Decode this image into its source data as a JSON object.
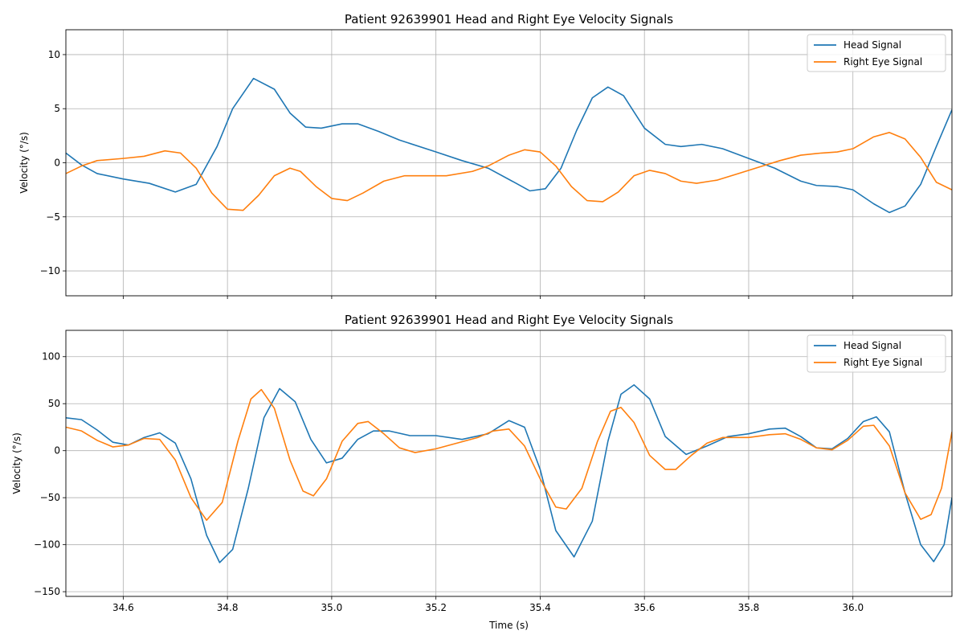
{
  "chart_data": [
    {
      "type": "line",
      "title": "Patient 92639901 Head and Right Eye Velocity Signals",
      "xlabel": "",
      "ylabel": "Velocity (°/s)",
      "xlim": [
        34.49,
        36.19
      ],
      "ylim": [
        -12.3,
        12.3
      ],
      "xticks": [
        34.6,
        34.8,
        35.0,
        35.2,
        35.4,
        35.6,
        35.8,
        36.0
      ],
      "xticklabels_visible": false,
      "yticks": [
        -10,
        -5,
        0,
        5,
        10
      ],
      "grid": true,
      "legend_position": "top-right",
      "series": [
        {
          "name": "Head Signal",
          "color": "#1f77b4",
          "points": [
            [
              34.49,
              0.9
            ],
            [
              34.52,
              -0.2
            ],
            [
              34.55,
              -1.0
            ],
            [
              34.6,
              -1.5
            ],
            [
              34.65,
              -1.9
            ],
            [
              34.7,
              -2.7
            ],
            [
              34.74,
              -2.0
            ],
            [
              34.78,
              1.5
            ],
            [
              34.81,
              5.0
            ],
            [
              34.85,
              7.8
            ],
            [
              34.89,
              6.8
            ],
            [
              34.92,
              4.6
            ],
            [
              34.95,
              3.3
            ],
            [
              34.98,
              3.2
            ],
            [
              35.02,
              3.6
            ],
            [
              35.05,
              3.6
            ],
            [
              35.09,
              2.9
            ],
            [
              35.13,
              2.1
            ],
            [
              35.2,
              1.0
            ],
            [
              35.25,
              0.2
            ],
            [
              35.3,
              -0.5
            ],
            [
              35.35,
              -1.8
            ],
            [
              35.38,
              -2.6
            ],
            [
              35.41,
              -2.4
            ],
            [
              35.44,
              -0.5
            ],
            [
              35.47,
              3.0
            ],
            [
              35.5,
              6.0
            ],
            [
              35.53,
              7.0
            ],
            [
              35.56,
              6.2
            ],
            [
              35.6,
              3.2
            ],
            [
              35.64,
              1.7
            ],
            [
              35.67,
              1.5
            ],
            [
              35.71,
              1.7
            ],
            [
              35.75,
              1.3
            ],
            [
              35.8,
              0.4
            ],
            [
              35.85,
              -0.5
            ],
            [
              35.9,
              -1.7
            ],
            [
              35.93,
              -2.1
            ],
            [
              35.97,
              -2.2
            ],
            [
              36.0,
              -2.5
            ],
            [
              36.04,
              -3.8
            ],
            [
              36.07,
              -4.6
            ],
            [
              36.1,
              -4.0
            ],
            [
              36.13,
              -2.0
            ],
            [
              36.16,
              1.5
            ],
            [
              36.19,
              4.9
            ]
          ]
        },
        {
          "name": "Right Eye Signal",
          "color": "#ff7f0e",
          "points": [
            [
              34.49,
              -1.0
            ],
            [
              34.52,
              -0.3
            ],
            [
              34.55,
              0.2
            ],
            [
              34.6,
              0.4
            ],
            [
              34.64,
              0.6
            ],
            [
              34.68,
              1.1
            ],
            [
              34.71,
              0.9
            ],
            [
              34.74,
              -0.5
            ],
            [
              34.77,
              -2.8
            ],
            [
              34.8,
              -4.3
            ],
            [
              34.83,
              -4.4
            ],
            [
              34.86,
              -3.0
            ],
            [
              34.89,
              -1.2
            ],
            [
              34.92,
              -0.5
            ],
            [
              34.94,
              -0.8
            ],
            [
              34.97,
              -2.2
            ],
            [
              35.0,
              -3.3
            ],
            [
              35.03,
              -3.5
            ],
            [
              35.06,
              -2.8
            ],
            [
              35.1,
              -1.7
            ],
            [
              35.14,
              -1.2
            ],
            [
              35.18,
              -1.2
            ],
            [
              35.22,
              -1.2
            ],
            [
              35.27,
              -0.8
            ],
            [
              35.3,
              -0.3
            ],
            [
              35.34,
              0.7
            ],
            [
              35.37,
              1.2
            ],
            [
              35.4,
              1.0
            ],
            [
              35.43,
              -0.3
            ],
            [
              35.46,
              -2.2
            ],
            [
              35.49,
              -3.5
            ],
            [
              35.52,
              -3.6
            ],
            [
              35.55,
              -2.7
            ],
            [
              35.58,
              -1.2
            ],
            [
              35.61,
              -0.7
            ],
            [
              35.64,
              -1.0
            ],
            [
              35.67,
              -1.7
            ],
            [
              35.7,
              -1.9
            ],
            [
              35.74,
              -1.6
            ],
            [
              35.78,
              -1.0
            ],
            [
              35.82,
              -0.4
            ],
            [
              35.86,
              0.2
            ],
            [
              35.9,
              0.7
            ],
            [
              35.94,
              0.9
            ],
            [
              35.97,
              1.0
            ],
            [
              36.0,
              1.3
            ],
            [
              36.04,
              2.4
            ],
            [
              36.07,
              2.8
            ],
            [
              36.1,
              2.2
            ],
            [
              36.13,
              0.5
            ],
            [
              36.16,
              -1.8
            ],
            [
              36.19,
              -2.5
            ]
          ]
        }
      ]
    },
    {
      "type": "line",
      "title": "Patient 92639901 Head and Right Eye Velocity Signals",
      "xlabel": "Time (s)",
      "ylabel": "Velocity (°/s)",
      "xlim": [
        34.49,
        36.19
      ],
      "ylim": [
        -155,
        128
      ],
      "xticks": [
        34.6,
        34.8,
        35.0,
        35.2,
        35.4,
        35.6,
        35.8,
        36.0
      ],
      "xticklabels": [
        "34.6",
        "34.8",
        "35.0",
        "35.2",
        "35.4",
        "35.6",
        "35.8",
        "36.0"
      ],
      "xticklabels_visible": true,
      "yticks": [
        -150,
        -100,
        -50,
        0,
        50,
        100
      ],
      "grid": true,
      "legend_position": "top-right",
      "series": [
        {
          "name": "Head Signal",
          "color": "#1f77b4",
          "points": [
            [
              34.49,
              35
            ],
            [
              34.52,
              33
            ],
            [
              34.55,
              22
            ],
            [
              34.58,
              9
            ],
            [
              34.61,
              6
            ],
            [
              34.64,
              14
            ],
            [
              34.67,
              19
            ],
            [
              34.7,
              8
            ],
            [
              34.73,
              -30
            ],
            [
              34.76,
              -90
            ],
            [
              34.785,
              -119
            ],
            [
              34.81,
              -105
            ],
            [
              34.84,
              -40
            ],
            [
              34.87,
              35
            ],
            [
              34.9,
              66
            ],
            [
              34.93,
              52
            ],
            [
              34.96,
              12
            ],
            [
              34.99,
              -13
            ],
            [
              35.02,
              -8
            ],
            [
              35.05,
              12
            ],
            [
              35.08,
              21
            ],
            [
              35.11,
              21
            ],
            [
              35.15,
              16
            ],
            [
              35.2,
              16
            ],
            [
              35.25,
              12
            ],
            [
              35.3,
              18
            ],
            [
              35.34,
              32
            ],
            [
              35.37,
              25
            ],
            [
              35.4,
              -20
            ],
            [
              35.43,
              -85
            ],
            [
              35.465,
              -113
            ],
            [
              35.5,
              -75
            ],
            [
              35.53,
              10
            ],
            [
              35.555,
              60
            ],
            [
              35.58,
              70
            ],
            [
              35.61,
              55
            ],
            [
              35.64,
              15
            ],
            [
              35.68,
              -4
            ],
            [
              35.72,
              5
            ],
            [
              35.76,
              15
            ],
            [
              35.8,
              18
            ],
            [
              35.84,
              23
            ],
            [
              35.87,
              24
            ],
            [
              35.9,
              15
            ],
            [
              35.93,
              3
            ],
            [
              35.96,
              2
            ],
            [
              35.99,
              13
            ],
            [
              36.02,
              31
            ],
            [
              36.045,
              36
            ],
            [
              36.07,
              20
            ],
            [
              36.1,
              -45
            ],
            [
              36.13,
              -100
            ],
            [
              36.155,
              -118
            ],
            [
              36.175,
              -100
            ],
            [
              36.19,
              -50
            ]
          ]
        },
        {
          "name": "Right Eye Signal",
          "color": "#ff7f0e",
          "points": [
            [
              34.49,
              25
            ],
            [
              34.52,
              21
            ],
            [
              34.55,
              11
            ],
            [
              34.58,
              4
            ],
            [
              34.61,
              6
            ],
            [
              34.64,
              13
            ],
            [
              34.67,
              12
            ],
            [
              34.7,
              -10
            ],
            [
              34.73,
              -50
            ],
            [
              34.76,
              -74
            ],
            [
              34.79,
              -55
            ],
            [
              34.82,
              10
            ],
            [
              34.845,
              55
            ],
            [
              34.865,
              65
            ],
            [
              34.89,
              45
            ],
            [
              34.92,
              -10
            ],
            [
              34.945,
              -43
            ],
            [
              34.965,
              -48
            ],
            [
              34.99,
              -30
            ],
            [
              35.02,
              10
            ],
            [
              35.05,
              29
            ],
            [
              35.07,
              31
            ],
            [
              35.1,
              18
            ],
            [
              35.13,
              3
            ],
            [
              35.16,
              -2
            ],
            [
              35.2,
              2
            ],
            [
              35.24,
              8
            ],
            [
              35.28,
              14
            ],
            [
              35.31,
              21
            ],
            [
              35.34,
              23
            ],
            [
              35.37,
              5
            ],
            [
              35.4,
              -30
            ],
            [
              35.43,
              -60
            ],
            [
              35.45,
              -62
            ],
            [
              35.48,
              -40
            ],
            [
              35.51,
              10
            ],
            [
              35.535,
              42
            ],
            [
              35.555,
              46
            ],
            [
              35.58,
              30
            ],
            [
              35.61,
              -5
            ],
            [
              35.64,
              -20
            ],
            [
              35.66,
              -20
            ],
            [
              35.69,
              -5
            ],
            [
              35.72,
              8
            ],
            [
              35.75,
              14
            ],
            [
              35.8,
              14
            ],
            [
              35.84,
              17
            ],
            [
              35.87,
              18
            ],
            [
              35.9,
              12
            ],
            [
              35.93,
              3
            ],
            [
              35.96,
              1
            ],
            [
              35.99,
              11
            ],
            [
              36.02,
              26
            ],
            [
              36.04,
              27
            ],
            [
              36.07,
              5
            ],
            [
              36.1,
              -45
            ],
            [
              36.13,
              -73
            ],
            [
              36.15,
              -68
            ],
            [
              36.17,
              -40
            ],
            [
              36.19,
              20
            ]
          ]
        }
      ]
    }
  ]
}
